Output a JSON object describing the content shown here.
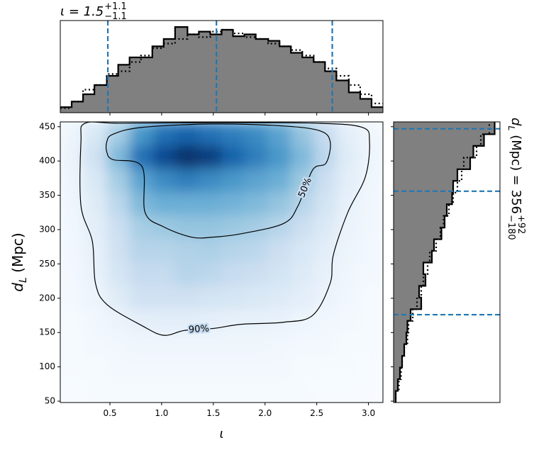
{
  "chart_data": [
    {
      "type": "heatmap",
      "xlabel": "ι",
      "ylabel": {
        "base": "d",
        "base_sub": "L",
        "rest": " (Mpc)"
      },
      "xlim": [
        0.02,
        3.14
      ],
      "xticks": [
        0.5,
        {
          "value": 1,
          "label": "1.0"
        },
        1.5,
        {
          "value": 2,
          "label": "2.0"
        },
        2.5,
        {
          "value": 3,
          "label": "3.0"
        }
      ],
      "ylim": [
        48,
        457
      ],
      "yticks": [
        50,
        100,
        150,
        200,
        250,
        300,
        350,
        400,
        450
      ],
      "colormap": [
        "#f7fbff",
        "#deebf7",
        "#c6dbef",
        "#9ecae1",
        "#6baed6",
        "#4292c6",
        "#2171b5",
        "#08519c",
        "#08306b"
      ],
      "zlim": [
        0,
        1
      ],
      "x_edges": [
        0.02,
        0.24,
        0.47,
        0.69,
        0.91,
        1.13,
        1.36,
        1.58,
        1.8,
        2.02,
        2.25,
        2.47,
        2.69,
        2.91,
        3.14
      ],
      "y_edges": [
        457,
        423,
        389,
        355,
        321,
        287,
        253,
        219,
        184,
        150,
        116,
        82,
        48
      ],
      "z": [
        [
          0.05,
          0.15,
          0.35,
          0.6,
          0.75,
          0.8,
          0.75,
          0.7,
          0.65,
          0.55,
          0.4,
          0.25,
          0.1,
          0.04
        ],
        [
          0.06,
          0.2,
          0.45,
          0.75,
          0.9,
          1.0,
          0.95,
          0.8,
          0.7,
          0.6,
          0.45,
          0.28,
          0.12,
          0.05
        ],
        [
          0.05,
          0.15,
          0.35,
          0.55,
          0.65,
          0.7,
          0.65,
          0.6,
          0.55,
          0.5,
          0.38,
          0.22,
          0.1,
          0.04
        ],
        [
          0.04,
          0.12,
          0.28,
          0.45,
          0.5,
          0.5,
          0.5,
          0.48,
          0.45,
          0.4,
          0.3,
          0.18,
          0.08,
          0.03
        ],
        [
          0.03,
          0.1,
          0.22,
          0.35,
          0.38,
          0.4,
          0.4,
          0.38,
          0.35,
          0.3,
          0.22,
          0.14,
          0.06,
          0.03
        ],
        [
          0.03,
          0.08,
          0.2,
          0.3,
          0.3,
          0.32,
          0.33,
          0.3,
          0.28,
          0.22,
          0.16,
          0.1,
          0.05,
          0.02
        ],
        [
          0.02,
          0.07,
          0.17,
          0.25,
          0.25,
          0.3,
          0.28,
          0.24,
          0.22,
          0.18,
          0.13,
          0.08,
          0.04,
          0.02
        ],
        [
          0.02,
          0.05,
          0.12,
          0.2,
          0.2,
          0.2,
          0.18,
          0.17,
          0.15,
          0.13,
          0.1,
          0.06,
          0.03,
          0.01
        ],
        [
          0.01,
          0.03,
          0.06,
          0.09,
          0.1,
          0.1,
          0.09,
          0.08,
          0.08,
          0.07,
          0.05,
          0.03,
          0.02,
          0.01
        ],
        [
          0.01,
          0.02,
          0.03,
          0.04,
          0.04,
          0.04,
          0.04,
          0.04,
          0.04,
          0.03,
          0.02,
          0.02,
          0.01,
          0.01
        ],
        [
          0.01,
          0.01,
          0.02,
          0.02,
          0.02,
          0.02,
          0.02,
          0.02,
          0.02,
          0.02,
          0.01,
          0.01,
          0.01,
          0
        ],
        [
          0,
          0.01,
          0.01,
          0.01,
          0.01,
          0.01,
          0.01,
          0.01,
          0.01,
          0.01,
          0.01,
          0,
          0,
          0
        ]
      ],
      "contours": [
        {
          "label": "50%",
          "x": [
            0.53,
            0.47,
            0.47,
            0.53,
            0.81,
            0.84,
            1.02,
            1.29,
            1.5,
            1.77,
            2.18,
            2.32,
            2.46,
            2.59,
            2.63,
            2.53,
            2.18,
            1.5,
            0.81
          ],
          "y": [
            439,
            428,
            413,
            402,
            392,
            325,
            304,
            289,
            289,
            294,
            309,
            335,
            387,
            397,
            428,
            444,
            451,
            454,
            449
          ]
        },
        {
          "label": "90%",
          "x": [
            0.26,
            0.22,
            0.22,
            0.33,
            0.36,
            0.47,
            0.81,
            1.02,
            1.22,
            1.5,
            1.77,
            2.18,
            2.46,
            2.63,
            2.66,
            2.8,
            2.97,
            3.01,
            2.94,
            2.5,
            1.5,
            0.6
          ],
          "y": [
            455,
            428,
            335,
            283,
            222,
            191,
            160,
            146,
            153,
            156,
            162,
            165,
            175,
            222,
            263,
            325,
            377,
            428,
            449,
            455,
            456,
            455
          ]
        }
      ],
      "contour_color": "#000000"
    },
    {
      "type": "histogram",
      "title": {
        "base": "ι = 1.5",
        "sup": "+1.1",
        "sub": "−1.1"
      },
      "xlim": [
        0.02,
        3.14
      ],
      "xticks": [
        0.5,
        1,
        1.5,
        2,
        2.5,
        3
      ],
      "ylim": [
        0,
        1
      ],
      "bins": [
        0.02,
        0.13,
        0.24,
        0.35,
        0.47,
        0.58,
        0.69,
        0.8,
        0.91,
        1.02,
        1.13,
        1.25,
        1.36,
        1.47,
        1.58,
        1.69,
        1.8,
        1.91,
        2.03,
        2.14,
        2.25,
        2.36,
        2.47,
        2.58,
        2.69,
        2.81,
        2.92,
        3.03,
        3.14
      ],
      "series": [
        {
          "style": "solid",
          "color": "#000000",
          "fill": "#808080",
          "values": [
            0.06,
            0.12,
            0.2,
            0.3,
            0.4,
            0.52,
            0.6,
            0.6,
            0.72,
            0.8,
            0.93,
            0.85,
            0.88,
            0.85,
            0.9,
            0.83,
            0.85,
            0.8,
            0.78,
            0.72,
            0.65,
            0.6,
            0.55,
            0.45,
            0.35,
            0.22,
            0.15,
            0.06
          ]
        },
        {
          "style": "dotted",
          "color": "#000000",
          "values": [
            0.05,
            0.12,
            0.25,
            0.3,
            0.42,
            0.45,
            0.55,
            0.62,
            0.7,
            0.75,
            0.8,
            0.85,
            0.82,
            0.88,
            0.9,
            0.86,
            0.82,
            0.8,
            0.75,
            0.72,
            0.68,
            0.62,
            0.55,
            0.48,
            0.4,
            0.3,
            0.2,
            0.1
          ]
        }
      ],
      "quantiles": [
        0.48,
        1.53,
        2.65
      ],
      "quantile_color": "#1f77b4"
    },
    {
      "type": "histogram",
      "orientation": "horizontal",
      "label": {
        "base": "d",
        "base_sub": "L",
        "rest": " (Mpc) = 356",
        "sup": "+92",
        "sub": "−180"
      },
      "ylim": [
        48,
        457
      ],
      "yticks": [
        50,
        100,
        150,
        200,
        250,
        300,
        350,
        400,
        450
      ],
      "xlim": [
        0,
        1
      ],
      "bins": [
        48,
        65,
        82,
        99,
        116,
        133,
        150,
        167,
        184,
        201,
        218,
        235,
        252,
        269,
        286,
        303,
        320,
        337,
        354,
        371,
        388,
        405,
        422,
        439,
        457
      ],
      "series": [
        {
          "style": "solid",
          "color": "#000000",
          "fill": "#808080",
          "values": [
            0.02,
            0.04,
            0.06,
            0.08,
            0.1,
            0.12,
            0.13,
            0.16,
            0.26,
            0.24,
            0.3,
            0.28,
            0.36,
            0.38,
            0.45,
            0.48,
            0.5,
            0.55,
            0.56,
            0.6,
            0.72,
            0.75,
            0.85,
            0.95
          ]
        },
        {
          "style": "dotted",
          "color": "#000000",
          "values": [
            0.02,
            0.05,
            0.07,
            0.08,
            0.1,
            0.13,
            0.14,
            0.18,
            0.22,
            0.26,
            0.28,
            0.32,
            0.34,
            0.4,
            0.44,
            0.47,
            0.52,
            0.56,
            0.6,
            0.64,
            0.66,
            0.78,
            0.82,
            0.9
          ]
        }
      ],
      "quantiles": [
        176,
        356,
        447
      ],
      "quantile_color": "#1f77b4"
    }
  ]
}
